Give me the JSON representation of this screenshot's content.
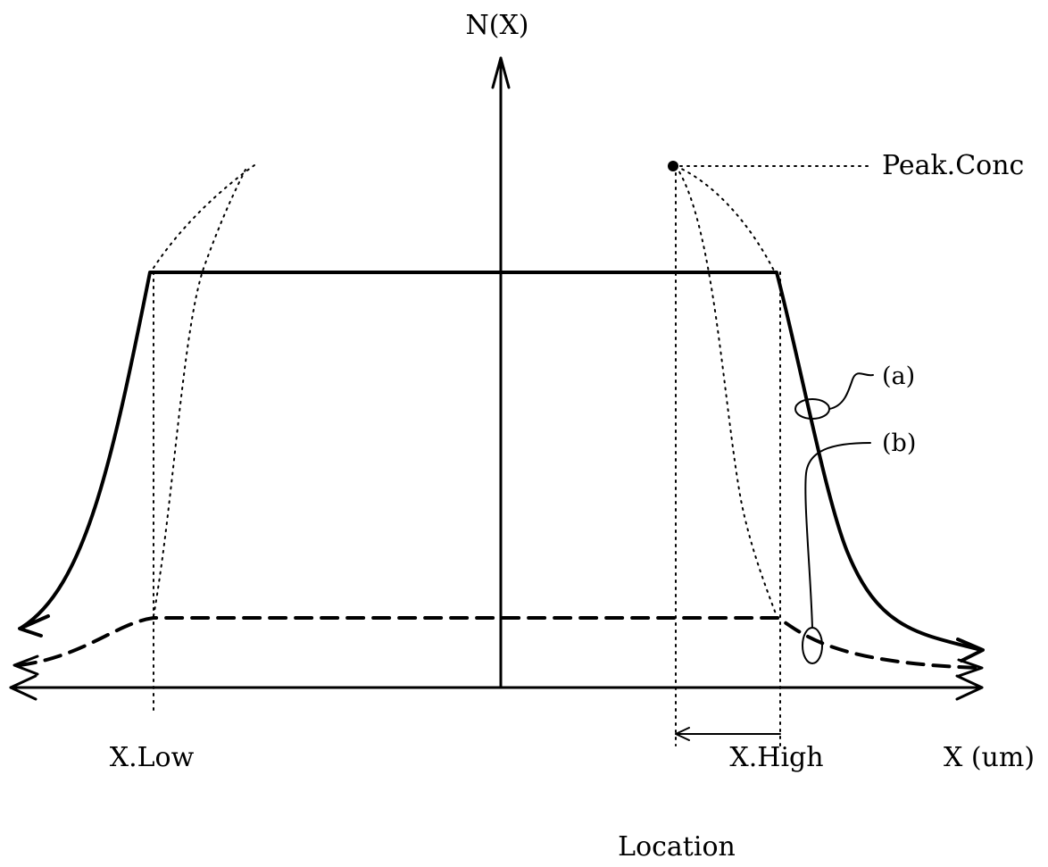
{
  "labels": {
    "y_axis": "N(X)",
    "x_axis": "X (um)",
    "peak": "Peak.Conc",
    "x_low": "X.Low",
    "x_high": "X.High",
    "location": "Location",
    "curve_a": "(a)",
    "curve_b": "(b)"
  },
  "colors": {
    "ink": "#000000",
    "background": "#ffffff"
  }
}
